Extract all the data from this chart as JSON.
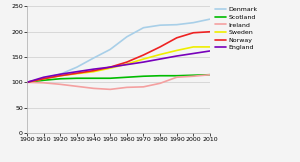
{
  "years": [
    1900,
    1910,
    1920,
    1930,
    1940,
    1950,
    1960,
    1970,
    1980,
    1990,
    2000,
    2010
  ],
  "series": {
    "Denmark": {
      "values": [
        100,
        108,
        116,
        130,
        148,
        165,
        190,
        208,
        213,
        214,
        218,
        225
      ],
      "color": "#a8cfe8",
      "lw": 1.2
    },
    "Scotland": {
      "values": [
        100,
        104,
        107,
        108,
        108,
        108,
        110,
        112,
        113,
        113,
        114,
        115
      ],
      "color": "#00bb00",
      "lw": 1.2
    },
    "Ireland": {
      "values": [
        100,
        99,
        96,
        92,
        88,
        86,
        90,
        91,
        98,
        110,
        112,
        115
      ],
      "color": "#f4a0a0",
      "lw": 1.2
    },
    "Sweden": {
      "values": [
        100,
        107,
        113,
        117,
        121,
        128,
        136,
        146,
        155,
        163,
        170,
        170
      ],
      "color": "#eeee00",
      "lw": 1.2
    },
    "Norway": {
      "values": [
        100,
        107,
        113,
        118,
        123,
        130,
        140,
        154,
        170,
        188,
        198,
        200
      ],
      "color": "#ee2222",
      "lw": 1.2
    },
    "England": {
      "values": [
        100,
        110,
        116,
        121,
        126,
        130,
        135,
        140,
        146,
        152,
        157,
        162
      ],
      "color": "#7700bb",
      "lw": 1.2
    }
  },
  "xlim": [
    1900,
    2010
  ],
  "ylim": [
    0,
    250
  ],
  "yticks": [
    0,
    50,
    100,
    150,
    200,
    250
  ],
  "xticks": [
    1900,
    1910,
    1920,
    1930,
    1940,
    1950,
    1960,
    1970,
    1980,
    1990,
    2000,
    2010
  ],
  "legend_order": [
    "Denmark",
    "Scotland",
    "Ireland",
    "Sweden",
    "Norway",
    "England"
  ],
  "background_color": "#f4f4f4",
  "grid_color": "#cccccc"
}
